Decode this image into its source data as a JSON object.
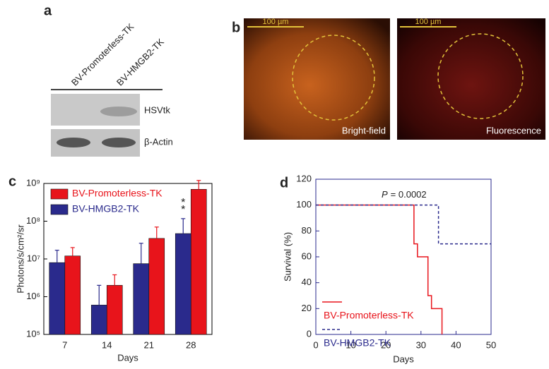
{
  "panels": [
    "a",
    "b",
    "c",
    "d"
  ],
  "blot": {
    "lanes": [
      "BV-Promoterless-TK",
      "BV-HMGB2-TK"
    ],
    "rows": [
      "HSVtk",
      "β-Actin"
    ]
  },
  "micrographs": [
    {
      "scale": "100 µm",
      "label": "Bright-field"
    },
    {
      "scale": "100 µm",
      "label": "Fluorescence"
    }
  ],
  "chart_data": [
    {
      "type": "bar",
      "log_scale": true,
      "x_label": "Days",
      "y_label": "Photons/s/cm²/sr",
      "categories": [
        "7",
        "14",
        "21",
        "28"
      ],
      "series": [
        {
          "name": "BV-Promoterless-TK",
          "color": "#e8141b",
          "values": [
            12000000,
            2000000,
            35000000,
            700000000
          ],
          "errors": [
            8000000,
            1800000,
            35000000,
            500000000
          ]
        },
        {
          "name": "BV-HMGB2-TK",
          "color": "#2a2a8c",
          "values": [
            8000000,
            600000,
            7500000,
            47000000
          ],
          "errors": [
            9000000,
            1400000,
            18500000,
            70000000
          ]
        }
      ],
      "annotations": [
        "*",
        "*"
      ],
      "ylim": [
        100000,
        1000000000
      ],
      "yticks": [
        {
          "value": 100000,
          "label": "10⁵"
        },
        {
          "value": 1000000,
          "label": "10⁶"
        },
        {
          "value": 10000000,
          "label": "10⁷"
        },
        {
          "value": 100000000,
          "label": "10⁸"
        },
        {
          "value": 1000000000,
          "label": "10⁹"
        }
      ],
      "legend": "upper-left"
    },
    {
      "type": "line",
      "step": "post",
      "x_label": "Days",
      "y_label": "Survival (%)",
      "pvalue_symbol": "P",
      "pvalue_text": "= 0.0002",
      "series": [
        {
          "name": "BV-Promoterless-TK",
          "color": "#e8141b",
          "dash": false,
          "x": [
            0,
            28,
            29,
            32,
            33,
            36
          ],
          "values": [
            100,
            70,
            60,
            30,
            20,
            0
          ]
        },
        {
          "name": "BV-HMGB2-TK",
          "color": "#2a2a8c",
          "dash": true,
          "x": [
            0,
            35,
            50
          ],
          "values": [
            100,
            70,
            70
          ]
        }
      ],
      "xlim": [
        0,
        50
      ],
      "xticks": [
        0,
        10,
        20,
        30,
        40,
        50
      ],
      "ylim": [
        0,
        120
      ],
      "yticks": [
        0,
        20,
        40,
        60,
        80,
        100,
        120
      ],
      "axis_color": "#2a2a8c",
      "legend": "lower-left"
    }
  ]
}
